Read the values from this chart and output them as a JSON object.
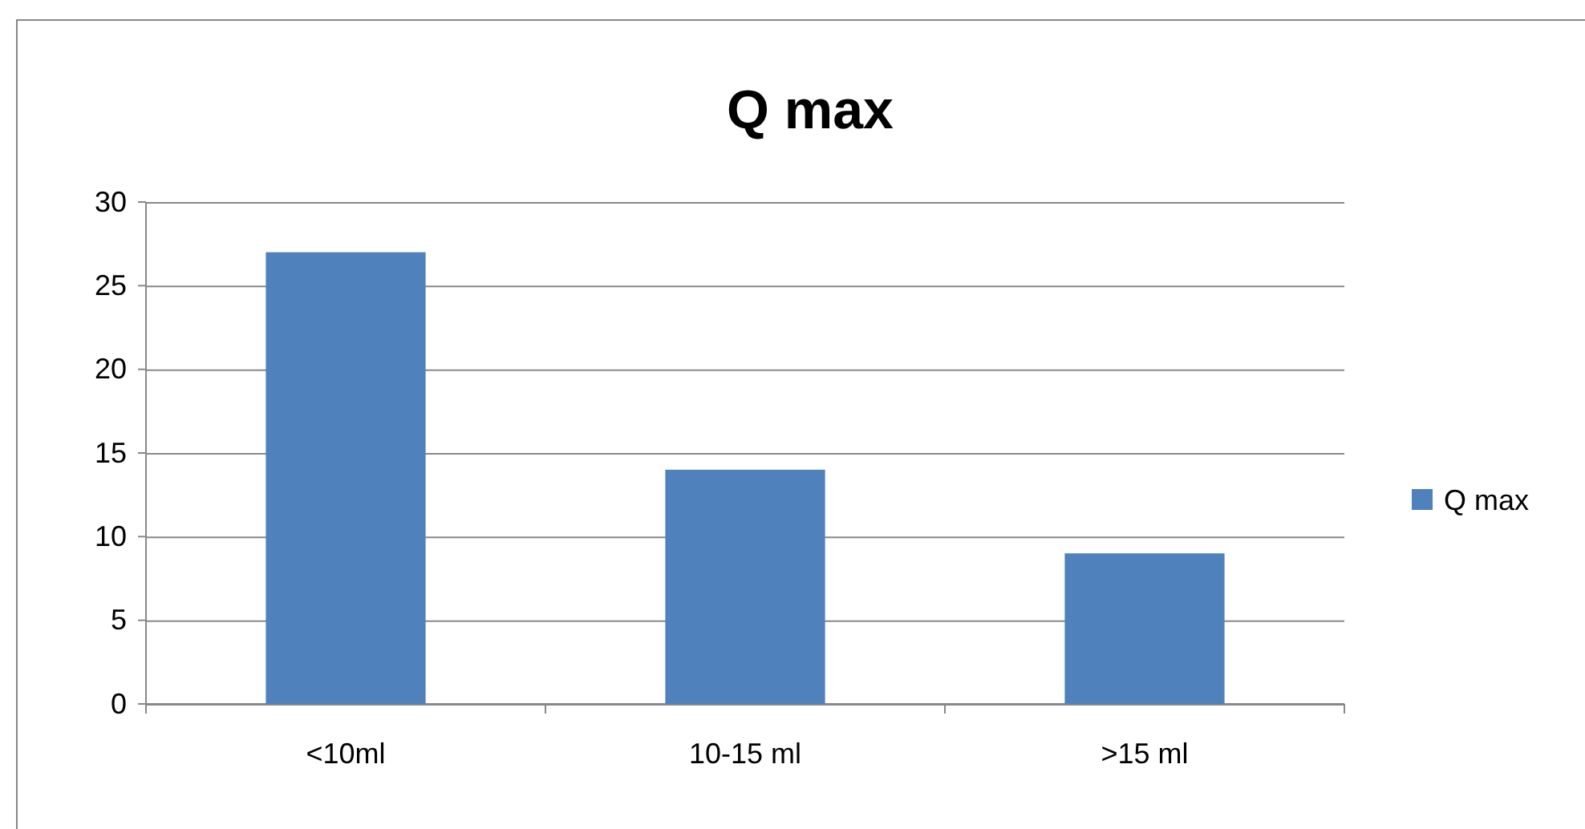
{
  "chart_data": {
    "type": "bar",
    "title": "Q max",
    "categories": [
      "<10ml",
      "10-15 ml",
      ">15 ml"
    ],
    "series": [
      {
        "name": "Q max",
        "color": "#4f81bd",
        "values": [
          27,
          14,
          9
        ]
      }
    ],
    "ylim": [
      0,
      30
    ],
    "yticks": [
      0,
      5,
      10,
      15,
      20,
      25,
      30
    ],
    "grid": "y",
    "legend": "right"
  }
}
